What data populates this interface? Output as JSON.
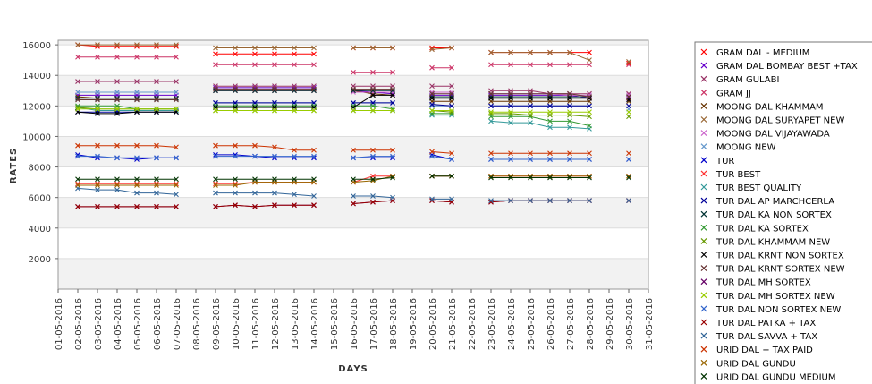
{
  "chart_data": {
    "type": "line",
    "title": "",
    "xlabel": "DAYS",
    "ylabel": "RATES",
    "ylim": [
      0,
      16000
    ],
    "yticks": [
      2000,
      4000,
      6000,
      8000,
      10000,
      12000,
      14000,
      16000
    ],
    "grid": true,
    "legend_position": "right",
    "categories": [
      "01-05-2016",
      "02-05-2016",
      "03-05-2016",
      "04-05-2016",
      "05-05-2016",
      "06-05-2016",
      "07-05-2016",
      "08-05-2016",
      "09-05-2016",
      "10-05-2016",
      "11-05-2016",
      "12-05-2016",
      "13-05-2016",
      "14-05-2016",
      "15-05-2016",
      "16-05-2016",
      "17-05-2016",
      "18-05-2016",
      "19-05-2016",
      "20-05-2016",
      "21-05-2016",
      "22-05-2016",
      "23-05-2016",
      "24-05-2016",
      "25-05-2016",
      "26-05-2016",
      "27-05-2016",
      "28-05-2016",
      "29-05-2016",
      "30-05-2016",
      "31-05-2016"
    ],
    "series": [
      {
        "name": "GRAM DAL - MEDIUM",
        "color": "#ff0000",
        "values": [
          null,
          16000,
          15900,
          15900,
          15900,
          15900,
          15900,
          null,
          15400,
          15400,
          15400,
          15400,
          15400,
          15400,
          null,
          15800,
          15800,
          15800,
          null,
          15800,
          15800,
          null,
          15500,
          15500,
          15500,
          15500,
          15500,
          15500,
          null,
          14800,
          null
        ]
      },
      {
        "name": "GRAM DAL BOMBAY BEST +TAX",
        "color": "#6600cc",
        "values": [
          null,
          12700,
          12700,
          12700,
          12700,
          12700,
          12700,
          null,
          13200,
          13200,
          13200,
          13200,
          13200,
          13200,
          null,
          13000,
          12900,
          12800,
          null,
          12700,
          12700,
          null,
          12700,
          12700,
          12700,
          12700,
          12700,
          12500,
          null,
          12500,
          null
        ]
      },
      {
        "name": "GRAM GULABI",
        "color": "#993366",
        "values": [
          null,
          13600,
          13600,
          13600,
          13600,
          13600,
          13600,
          null,
          13300,
          13300,
          13300,
          13300,
          13300,
          13300,
          null,
          13300,
          13300,
          13300,
          null,
          13300,
          13300,
          null,
          13000,
          13000,
          13000,
          12800,
          12800,
          12800,
          null,
          12800,
          null
        ]
      },
      {
        "name": "GRAM JJ",
        "color": "#cc3366",
        "values": [
          null,
          15200,
          15200,
          15200,
          15200,
          15200,
          15200,
          null,
          14700,
          14700,
          14700,
          14700,
          14700,
          14700,
          null,
          14200,
          14200,
          14200,
          null,
          14500,
          14500,
          null,
          14700,
          14700,
          14700,
          14700,
          14700,
          14700,
          null,
          14700,
          null
        ]
      },
      {
        "name": "MOONG DAL KHAMMAM",
        "color": "#663300",
        "values": [
          null,
          12600,
          12500,
          12500,
          12500,
          12500,
          12500,
          null,
          13000,
          13000,
          13000,
          13000,
          13000,
          13000,
          null,
          13000,
          12800,
          12700,
          null,
          12300,
          12300,
          null,
          12300,
          12300,
          12300,
          12300,
          12300,
          12300,
          null,
          12300,
          null
        ]
      },
      {
        "name": "MOONG DAL SURYAPET NEW",
        "color": "#996633",
        "values": [
          null,
          16000,
          16000,
          16000,
          16000,
          16000,
          16000,
          null,
          15800,
          15800,
          15800,
          15800,
          15800,
          15800,
          null,
          15800,
          15800,
          15800,
          null,
          15700,
          15800,
          null,
          15500,
          15500,
          15500,
          15500,
          15500,
          15000,
          null,
          14900,
          null
        ]
      },
      {
        "name": "MOONG DAL VIJAYAWADA",
        "color": "#cc66cc",
        "values": [
          null,
          12900,
          12900,
          12900,
          12900,
          12900,
          12900,
          null,
          13000,
          13000,
          13000,
          13000,
          13000,
          13000,
          null,
          12900,
          12900,
          12900,
          null,
          12900,
          12900,
          null,
          12800,
          12800,
          12800,
          12800,
          12700,
          12700,
          null,
          12700,
          null
        ]
      },
      {
        "name": "MOONG NEW",
        "color": "#6699cc",
        "values": [
          null,
          12900,
          12900,
          12900,
          12900,
          12900,
          12900,
          null,
          12200,
          12200,
          12200,
          12200,
          12200,
          12200,
          null,
          12200,
          12200,
          12200,
          null,
          12000,
          12000,
          null,
          12000,
          12000,
          12000,
          12000,
          12000,
          12000,
          null,
          11800,
          null
        ]
      },
      {
        "name": "TUR",
        "color": "#0000cc",
        "values": [
          null,
          8800,
          8600,
          8600,
          8500,
          8600,
          8600,
          null,
          8800,
          8800,
          8700,
          8600,
          8600,
          8600,
          null,
          8600,
          8600,
          8600,
          null,
          8800,
          8500,
          null,
          8500,
          8500,
          8500,
          8500,
          8500,
          8500,
          null,
          8500,
          null
        ]
      },
      {
        "name": "TUR BEST",
        "color": "#ff3333",
        "values": [
          null,
          6900,
          6900,
          6900,
          6900,
          6900,
          6900,
          null,
          6900,
          6900,
          7000,
          7000,
          7000,
          7000,
          null,
          7000,
          7400,
          7400,
          null,
          7400,
          7400,
          null,
          7400,
          7400,
          7400,
          7400,
          7400,
          7400,
          null,
          7400,
          null
        ]
      },
      {
        "name": "TUR BEST QUALITY",
        "color": "#339999",
        "values": [
          null,
          11900,
          11700,
          11700,
          11700,
          11700,
          11700,
          null,
          11900,
          11900,
          11900,
          11900,
          11900,
          11900,
          null,
          11700,
          11700,
          11700,
          null,
          11400,
          11400,
          null,
          11000,
          10900,
          10900,
          10600,
          10600,
          10500,
          null,
          null,
          null
        ]
      },
      {
        "name": "TUR DAL AP MARCHCERLA",
        "color": "#000099",
        "values": [
          null,
          11600,
          11600,
          11600,
          11600,
          11600,
          11600,
          null,
          12200,
          12200,
          12200,
          12200,
          12200,
          12200,
          null,
          12200,
          12200,
          12200,
          null,
          12100,
          12000,
          null,
          12000,
          12000,
          12000,
          12000,
          12000,
          12000,
          null,
          12000,
          null
        ]
      },
      {
        "name": "TUR DAL KA NON SORTEX",
        "color": "#003333",
        "values": [
          null,
          12500,
          12500,
          12500,
          12500,
          12500,
          12500,
          null,
          13000,
          13000,
          13000,
          13000,
          13000,
          13000,
          null,
          13000,
          13000,
          13000,
          null,
          12600,
          12600,
          null,
          12600,
          12600,
          12600,
          12600,
          12600,
          12600,
          null,
          12600,
          null
        ]
      },
      {
        "name": "TUR DAL KA SORTEX",
        "color": "#339933",
        "values": [
          null,
          12000,
          12000,
          12000,
          11800,
          11800,
          11800,
          null,
          12000,
          12000,
          12000,
          12000,
          12000,
          12000,
          null,
          12000,
          12000,
          11800,
          null,
          11500,
          11500,
          null,
          11300,
          11300,
          11300,
          11000,
          11000,
          10700,
          null,
          null,
          null
        ]
      },
      {
        "name": "TUR DAL KHAMMAM NEW",
        "color": "#669900",
        "values": [
          null,
          11900,
          11800,
          11800,
          11800,
          11800,
          11800,
          null,
          11700,
          11700,
          11700,
          11700,
          11700,
          11700,
          null,
          11700,
          11700,
          11700,
          null,
          11700,
          11600,
          null,
          11500,
          11500,
          11400,
          11400,
          11400,
          11300,
          null,
          11300,
          null
        ]
      },
      {
        "name": "TUR DAL KRNT NON SORTEX",
        "color": "#000000",
        "values": [
          null,
          11600,
          11500,
          11500,
          11600,
          11600,
          11600,
          null,
          11900,
          11900,
          11900,
          11900,
          11900,
          11900,
          null,
          11900,
          12700,
          12700,
          null,
          12500,
          12500,
          null,
          12500,
          12500,
          12500,
          12500,
          12500,
          12500,
          null,
          12400,
          null
        ]
      },
      {
        "name": "TUR DAL KRNT SORTEX NEW",
        "color": "#663333",
        "values": [
          null,
          12400,
          12400,
          12400,
          12400,
          12400,
          12400,
          null,
          13100,
          13100,
          13100,
          13100,
          13100,
          13100,
          null,
          13100,
          13100,
          13100,
          null,
          12800,
          12800,
          null,
          12800,
          12800,
          12800,
          12800,
          12800,
          12600,
          null,
          12600,
          null
        ]
      },
      {
        "name": "TUR DAL MH SORTEX",
        "color": "#660066",
        "values": [
          null,
          5400,
          5400,
          5400,
          5400,
          5400,
          5400,
          null,
          5400,
          5500,
          5400,
          5500,
          5500,
          5500,
          null,
          5600,
          5700,
          5800,
          null,
          5800,
          5700,
          null,
          5700,
          5800,
          5800,
          5800,
          5800,
          5800,
          null,
          5800,
          null
        ]
      },
      {
        "name": "TUR DAL MH SORTEX NEW",
        "color": "#99cc00",
        "values": [
          null,
          11800,
          11800,
          11800,
          11800,
          11800,
          11800,
          null,
          11700,
          11700,
          11700,
          11700,
          11700,
          11700,
          null,
          11700,
          11700,
          11700,
          null,
          11700,
          11700,
          null,
          11600,
          11600,
          11600,
          11600,
          11600,
          11600,
          null,
          11600,
          null
        ]
      },
      {
        "name": "TUR DAL NON SORTEX NEW",
        "color": "#3366cc",
        "values": [
          null,
          8700,
          8700,
          8600,
          8600,
          8600,
          8600,
          null,
          8700,
          8700,
          8700,
          8700,
          8700,
          8700,
          null,
          8600,
          8700,
          8700,
          null,
          8700,
          8500,
          null,
          8500,
          8500,
          8500,
          8500,
          8500,
          8500,
          null,
          8500,
          null
        ]
      },
      {
        "name": "TUR DAL PATKA + TAX",
        "color": "#990000",
        "values": [
          null,
          5400,
          5400,
          5400,
          5400,
          5400,
          5400,
          null,
          5400,
          5500,
          5400,
          5500,
          5500,
          5500,
          null,
          5600,
          5700,
          5800,
          null,
          5800,
          5700,
          null,
          5700,
          5800,
          5800,
          5800,
          5800,
          5800,
          null,
          5800,
          null
        ]
      },
      {
        "name": "TUR DAL SAVVA + TAX",
        "color": "#336699",
        "values": [
          null,
          6600,
          6500,
          6500,
          6300,
          6300,
          6200,
          null,
          6300,
          6300,
          6300,
          6300,
          6200,
          6100,
          null,
          6100,
          6100,
          6000,
          null,
          5900,
          5900,
          null,
          5800,
          5800,
          5800,
          5800,
          5800,
          5800,
          null,
          5800,
          null
        ]
      },
      {
        "name": "URID DAL + TAX PAID",
        "color": "#cc3300",
        "values": [
          null,
          9400,
          9400,
          9400,
          9400,
          9400,
          9300,
          null,
          9400,
          9400,
          9400,
          9300,
          9100,
          9100,
          null,
          9100,
          9100,
          9100,
          null,
          9000,
          8900,
          null,
          8900,
          8900,
          8900,
          8900,
          8900,
          8900,
          null,
          8900,
          null
        ]
      },
      {
        "name": "URID DAL GUNDU",
        "color": "#996600",
        "values": [
          null,
          6800,
          6800,
          6800,
          6800,
          6800,
          6800,
          null,
          6800,
          6800,
          7000,
          7000,
          7000,
          7000,
          null,
          7000,
          7100,
          7400,
          null,
          7400,
          7400,
          null,
          7400,
          7400,
          7400,
          7400,
          7400,
          7400,
          null,
          7400,
          null
        ]
      },
      {
        "name": "URID DAL GUNDU MEDIUM",
        "color": "#003300",
        "values": [
          null,
          7200,
          7200,
          7200,
          7200,
          7200,
          7200,
          null,
          7200,
          7200,
          7200,
          7200,
          7200,
          7200,
          null,
          7200,
          7200,
          7300,
          null,
          7400,
          7400,
          null,
          7300,
          7300,
          7300,
          7300,
          7300,
          7300,
          null,
          7300,
          null
        ]
      }
    ]
  }
}
